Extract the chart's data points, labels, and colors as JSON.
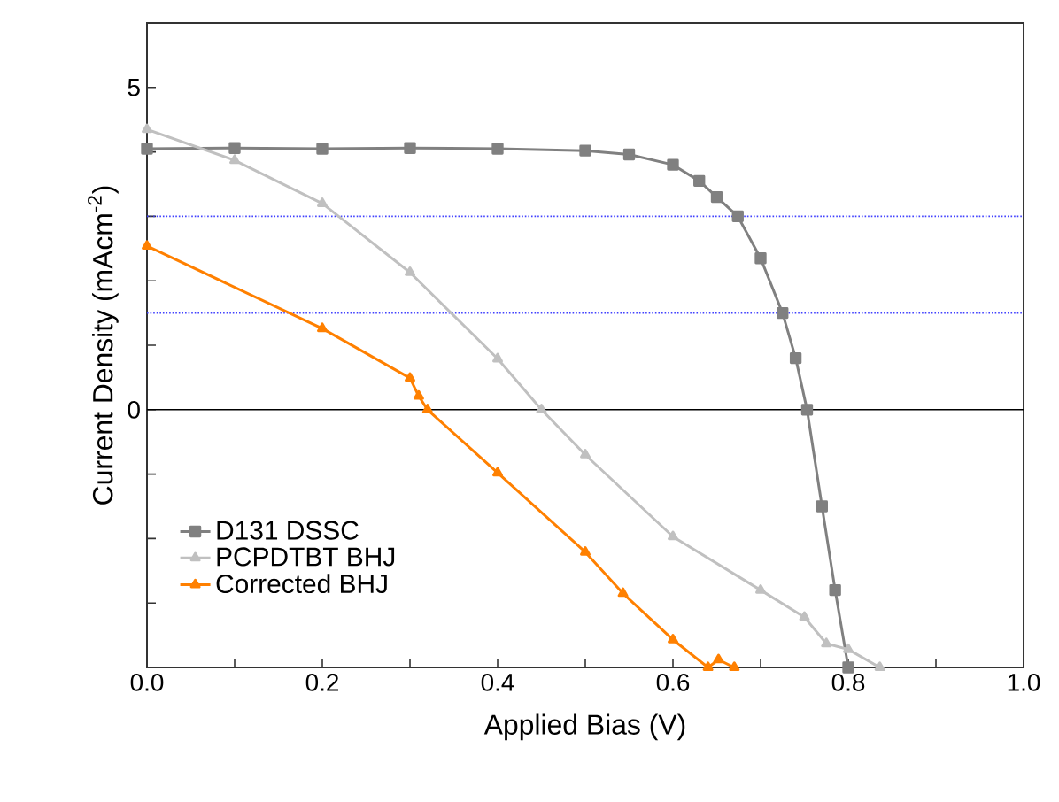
{
  "chart_data": {
    "type": "line",
    "xlabel": "Applied Bias (V)",
    "ylabel": "Current Density (mAcm$^{-2}$)",
    "xlim": [
      0,
      1
    ],
    "ylim": [
      -4,
      6
    ],
    "xticks": [
      {
        "value": 0,
        "label": "0.0"
      },
      {
        "value": 0.1,
        "label": null
      },
      {
        "value": 0.2,
        "label": "0.2"
      },
      {
        "value": 0.3,
        "label": null
      },
      {
        "value": 0.4,
        "label": "0.4"
      },
      {
        "value": 0.5,
        "label": null
      },
      {
        "value": 0.6,
        "label": "0.6"
      },
      {
        "value": 0.7,
        "label": null
      },
      {
        "value": 0.8,
        "label": "0.8"
      },
      {
        "value": 0.9,
        "label": null
      },
      {
        "value": 1,
        "label": "1.0"
      }
    ],
    "yticks": [
      {
        "value": -4,
        "label": null
      },
      {
        "value": -3,
        "label": null
      },
      {
        "value": -2,
        "label": null
      },
      {
        "value": -1,
        "label": null
      },
      0,
      {
        "value": 1,
        "label": null
      },
      {
        "value": 2,
        "label": null
      },
      {
        "value": 3,
        "label": null
      },
      {
        "value": 4,
        "label": null
      },
      5,
      {
        "value": 6,
        "label": null
      }
    ],
    "legend": "bottom left",
    "grid": false,
    "ref_lines": [
      {
        "axis": "y",
        "value": 0,
        "color": "#000000",
        "line_style": "solid"
      },
      {
        "axis": "y",
        "value": 3,
        "color": "#4040ff",
        "line_style": "dotted"
      },
      {
        "axis": "y",
        "value": 1.5,
        "color": "#4040ff",
        "line_style": "dotted"
      }
    ],
    "series": [
      {
        "name": "D131 DSSC",
        "color": "#808080",
        "marker": "square",
        "x": [
          0,
          0.1,
          0.2,
          0.3,
          0.4,
          0.5,
          0.55,
          0.6,
          0.63,
          0.65,
          0.674,
          0.7,
          0.725,
          0.74,
          0.753,
          0.77,
          0.785,
          0.8
        ],
        "values": [
          4.05,
          4.06,
          4.05,
          4.06,
          4.05,
          4.02,
          3.96,
          3.8,
          3.55,
          3.3,
          3.0,
          2.35,
          1.5,
          0.8,
          0,
          -1.5,
          -2.8,
          -4
        ]
      },
      {
        "name": "PCPDTBT BHJ",
        "color": "#c0c0c0",
        "marker": "triangle",
        "x": [
          0,
          0.1,
          0.2,
          0.3,
          0.4,
          0.45,
          0.5,
          0.6,
          0.7,
          0.75,
          0.775,
          0.8,
          0.836
        ],
        "values": [
          4.35,
          3.87,
          3.2,
          2.13,
          0.79,
          0,
          -0.7,
          -1.97,
          -2.8,
          -3.22,
          -3.63,
          -3.72,
          -4
        ]
      },
      {
        "name": "Corrected BHJ",
        "color": "#ff8000",
        "marker": "triangle",
        "x": [
          0,
          0.2,
          0.3,
          0.31,
          0.32,
          0.4,
          0.5,
          0.543,
          0.6,
          0.64,
          0.652,
          0.67
        ],
        "values": [
          2.54,
          1.26,
          0.49,
          0.21,
          0,
          -0.98,
          -2.21,
          -2.85,
          -3.57,
          -4,
          -3.88,
          -4
        ]
      }
    ]
  }
}
